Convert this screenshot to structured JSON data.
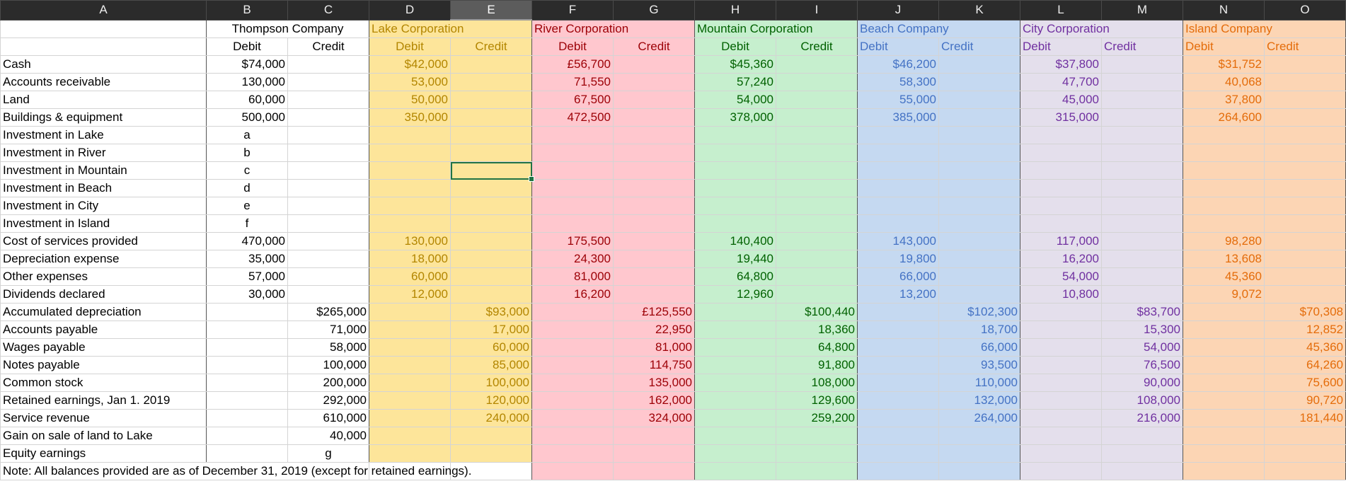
{
  "columns": [
    "A",
    "B",
    "C",
    "D",
    "E",
    "F",
    "G",
    "H",
    "I",
    "J",
    "K",
    "L",
    "M",
    "N",
    "O"
  ],
  "selected_column": "E",
  "companies": [
    {
      "key": "thompson",
      "name": "Thompson Company",
      "debit_label": "Debit",
      "credit_label": "Credit",
      "bg": "#ffffff",
      "fg": "#000000"
    },
    {
      "key": "lake",
      "name": "Lake Corporation",
      "debit_label": "Debit",
      "credit_label": "Credit",
      "bg": "#fde59a",
      "fg": "#b38600"
    },
    {
      "key": "river",
      "name": "River Corporation",
      "debit_label": "Debit",
      "credit_label": "Credit",
      "bg": "#ffc7ce",
      "fg": "#9c0006"
    },
    {
      "key": "mountain",
      "name": "Mountain Corporation",
      "debit_label": "Debit",
      "credit_label": "Credit",
      "bg": "#c6efce",
      "fg": "#006100"
    },
    {
      "key": "beach",
      "name": "Beach Company",
      "debit_label": "Debit",
      "credit_label": "Credit",
      "bg": "#c5d9f1",
      "fg": "#4472c4"
    },
    {
      "key": "city",
      "name": "City Corporation",
      "debit_label": "Debit",
      "credit_label": "Credit",
      "bg": "#e4dfec",
      "fg": "#7030a0"
    },
    {
      "key": "island",
      "name": "Island Company",
      "debit_label": "Debit",
      "credit_label": "Credit",
      "bg": "#fcd5b4",
      "fg": "#e46c0a"
    }
  ],
  "rows": [
    {
      "label": "Cash",
      "vals": [
        "$74,000",
        "",
        "$42,000",
        "",
        "£56,700",
        "",
        "$45,360",
        "",
        "$46,200",
        "",
        "$37,800",
        "",
        "$31,752",
        ""
      ]
    },
    {
      "label": "Accounts receivable",
      "vals": [
        "130,000",
        "",
        "53,000",
        "",
        "71,550",
        "",
        "57,240",
        "",
        "58,300",
        "",
        "47,700",
        "",
        "40,068",
        ""
      ]
    },
    {
      "label": "Land",
      "vals": [
        "60,000",
        "",
        "50,000",
        "",
        "67,500",
        "",
        "54,000",
        "",
        "55,000",
        "",
        "45,000",
        "",
        "37,800",
        ""
      ]
    },
    {
      "label": "Buildings & equipment",
      "vals": [
        "500,000",
        "",
        "350,000",
        "",
        "472,500",
        "",
        "378,000",
        "",
        "385,000",
        "",
        "315,000",
        "",
        "264,600",
        ""
      ]
    },
    {
      "label": "Investment in Lake",
      "vals": [
        "a",
        "",
        "",
        "",
        "",
        "",
        "",
        "",
        "",
        "",
        "",
        "",
        "",
        ""
      ]
    },
    {
      "label": "Investment in River",
      "vals": [
        "b",
        "",
        "",
        "",
        "",
        "",
        "",
        "",
        "",
        "",
        "",
        "",
        "",
        ""
      ]
    },
    {
      "label": "Investment in Mountain",
      "vals": [
        "c",
        "",
        "",
        "",
        "",
        "",
        "",
        "",
        "",
        "",
        "",
        "",
        "",
        ""
      ]
    },
    {
      "label": "Investment in Beach",
      "vals": [
        "d",
        "",
        "",
        "",
        "",
        "",
        "",
        "",
        "",
        "",
        "",
        "",
        "",
        ""
      ]
    },
    {
      "label": "Investment in City",
      "vals": [
        "e",
        "",
        "",
        "",
        "",
        "",
        "",
        "",
        "",
        "",
        "",
        "",
        "",
        ""
      ]
    },
    {
      "label": "Investment in Island",
      "vals": [
        "f",
        "",
        "",
        "",
        "",
        "",
        "",
        "",
        "",
        "",
        "",
        "",
        "",
        ""
      ]
    },
    {
      "label": "Cost of services provided",
      "vals": [
        "470,000",
        "",
        "130,000",
        "",
        "175,500",
        "",
        "140,400",
        "",
        "143,000",
        "",
        "117,000",
        "",
        "98,280",
        ""
      ]
    },
    {
      "label": "Depreciation expense",
      "vals": [
        "35,000",
        "",
        "18,000",
        "",
        "24,300",
        "",
        "19,440",
        "",
        "19,800",
        "",
        "16,200",
        "",
        "13,608",
        ""
      ]
    },
    {
      "label": "Other expenses",
      "vals": [
        "57,000",
        "",
        "60,000",
        "",
        "81,000",
        "",
        "64,800",
        "",
        "66,000",
        "",
        "54,000",
        "",
        "45,360",
        ""
      ]
    },
    {
      "label": "Dividends declared",
      "vals": [
        "30,000",
        "",
        "12,000",
        "",
        "16,200",
        "",
        "12,960",
        "",
        "13,200",
        "",
        "10,800",
        "",
        "9,072",
        ""
      ]
    },
    {
      "label": "Accumulated depreciation",
      "vals": [
        "",
        "$265,000",
        "",
        "$93,000",
        "",
        "£125,550",
        "",
        "$100,440",
        "",
        "$102,300",
        "",
        "$83,700",
        "",
        "$70,308"
      ]
    },
    {
      "label": "Accounts payable",
      "vals": [
        "",
        "71,000",
        "",
        "17,000",
        "",
        "22,950",
        "",
        "18,360",
        "",
        "18,700",
        "",
        "15,300",
        "",
        "12,852"
      ]
    },
    {
      "label": "Wages payable",
      "vals": [
        "",
        "58,000",
        "",
        "60,000",
        "",
        "81,000",
        "",
        "64,800",
        "",
        "66,000",
        "",
        "54,000",
        "",
        "45,360"
      ]
    },
    {
      "label": "Notes payable",
      "vals": [
        "",
        "100,000",
        "",
        "85,000",
        "",
        "114,750",
        "",
        "91,800",
        "",
        "93,500",
        "",
        "76,500",
        "",
        "64,260"
      ]
    },
    {
      "label": "Common stock",
      "vals": [
        "",
        "200,000",
        "",
        "100,000",
        "",
        "135,000",
        "",
        "108,000",
        "",
        "110,000",
        "",
        "90,000",
        "",
        "75,600"
      ]
    },
    {
      "label": "Retained earnings, Jan 1. 2019",
      "vals": [
        "",
        "292,000",
        "",
        "120,000",
        "",
        "162,000",
        "",
        "129,600",
        "",
        "132,000",
        "",
        "108,000",
        "",
        "90,720"
      ]
    },
    {
      "label": "Service revenue",
      "vals": [
        "",
        "610,000",
        "",
        "240,000",
        "",
        "324,000",
        "",
        "259,200",
        "",
        "264,000",
        "",
        "216,000",
        "",
        "181,440"
      ]
    },
    {
      "label": "Gain on sale of land to Lake",
      "vals": [
        "",
        "40,000",
        "",
        "",
        "",
        "",
        "",
        "",
        "",
        "",
        "",
        "",
        "",
        ""
      ]
    },
    {
      "label": "Equity earnings",
      "vals": [
        "",
        "g",
        "",
        "",
        "",
        "",
        "",
        "",
        "",
        "",
        "",
        "",
        "",
        ""
      ]
    }
  ],
  "center_values": [
    "a",
    "b",
    "c",
    "d",
    "e",
    "f",
    "g"
  ],
  "note": "Note: All balances provided are as of December 31, 2019 (except for retained earnings)."
}
